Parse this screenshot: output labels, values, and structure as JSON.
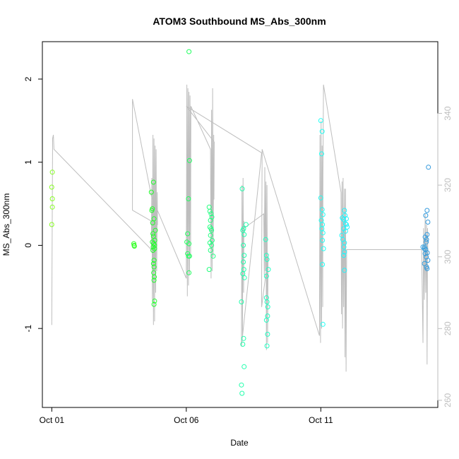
{
  "chart_data": {
    "type": "scatter",
    "title": "ATOM3 Southbound MS_Abs_300nm",
    "xlabel": "Date",
    "ylabel": "MS_Abs_300nm",
    "x_unit": "days since Oct 01",
    "xlim": [
      -0.35,
      14.35
    ],
    "ylim": [
      -1.95,
      2.45
    ],
    "x_ticks": [
      {
        "value": 0,
        "label": "Oct 01"
      },
      {
        "value": 5,
        "label": "Oct 06"
      },
      {
        "value": 10,
        "label": "Oct 11"
      }
    ],
    "y_ticks": [
      -1,
      0,
      1,
      2
    ],
    "y2_lim": [
      258,
      360
    ],
    "y2_ticks": [
      260,
      280,
      300,
      320,
      340
    ],
    "grid": false,
    "legend": "none",
    "series": [
      {
        "kind": "points",
        "color_ramp": [
          "#88ff22",
          "#22ff22",
          "#22ffaa",
          "#22ffff",
          "#3399dd"
        ],
        "points": [
          {
            "x": 0.02,
            "y": 0.88
          },
          {
            "x": 0.0,
            "y": 0.7
          },
          {
            "x": 0.02,
            "y": 0.56
          },
          {
            "x": 0.02,
            "y": 0.46
          },
          {
            "x": 0.0,
            "y": 0.25
          },
          {
            "x": 3.05,
            "y": 0.02
          },
          {
            "x": 3.06,
            "y": 0.0
          },
          {
            "x": 3.07,
            "y": -0.01
          },
          {
            "x": 3.7,
            "y": 0.64
          },
          {
            "x": 3.78,
            "y": 0.76
          },
          {
            "x": 3.74,
            "y": 0.44
          },
          {
            "x": 3.72,
            "y": 0.42
          },
          {
            "x": 3.8,
            "y": 0.32
          },
          {
            "x": 3.75,
            "y": 0.27
          },
          {
            "x": 3.85,
            "y": 0.18
          },
          {
            "x": 3.76,
            "y": 0.14
          },
          {
            "x": 3.78,
            "y": 0.11
          },
          {
            "x": 3.83,
            "y": 0.06
          },
          {
            "x": 3.74,
            "y": 0.04
          },
          {
            "x": 3.79,
            "y": 0.02
          },
          {
            "x": 3.77,
            "y": -0.02
          },
          {
            "x": 3.82,
            "y": -0.04
          },
          {
            "x": 3.76,
            "y": -0.06
          },
          {
            "x": 3.8,
            "y": -0.18
          },
          {
            "x": 3.78,
            "y": -0.22
          },
          {
            "x": 3.8,
            "y": -0.26
          },
          {
            "x": 3.79,
            "y": -0.33
          },
          {
            "x": 3.81,
            "y": -0.38
          },
          {
            "x": 3.8,
            "y": -0.42
          },
          {
            "x": 3.82,
            "y": -0.67
          },
          {
            "x": 3.8,
            "y": -0.71
          },
          {
            "x": 3.82,
            "y": 0.0
          },
          {
            "x": 5.1,
            "y": 2.33
          },
          {
            "x": 5.12,
            "y": 1.02
          },
          {
            "x": 5.08,
            "y": 0.56
          },
          {
            "x": 5.05,
            "y": 0.14
          },
          {
            "x": 5.02,
            "y": 0.04
          },
          {
            "x": 5.1,
            "y": 0.02
          },
          {
            "x": 5.05,
            "y": -0.1
          },
          {
            "x": 5.08,
            "y": -0.13
          },
          {
            "x": 5.12,
            "y": -0.13
          },
          {
            "x": 5.1,
            "y": -0.33
          },
          {
            "x": 5.85,
            "y": 0.46
          },
          {
            "x": 5.88,
            "y": 0.41
          },
          {
            "x": 5.92,
            "y": 0.38
          },
          {
            "x": 5.95,
            "y": 0.34
          },
          {
            "x": 5.9,
            "y": 0.3
          },
          {
            "x": 5.88,
            "y": 0.22
          },
          {
            "x": 5.92,
            "y": 0.2
          },
          {
            "x": 5.94,
            "y": 0.18
          },
          {
            "x": 5.9,
            "y": 0.12
          },
          {
            "x": 5.96,
            "y": 0.06
          },
          {
            "x": 5.88,
            "y": 0.03
          },
          {
            "x": 5.94,
            "y": 0.0
          },
          {
            "x": 5.9,
            "y": -0.06
          },
          {
            "x": 6.0,
            "y": -0.13
          },
          {
            "x": 5.85,
            "y": -0.29
          },
          {
            "x": 7.08,
            "y": 0.68
          },
          {
            "x": 7.22,
            "y": 0.25
          },
          {
            "x": 7.13,
            "y": 0.2
          },
          {
            "x": 7.1,
            "y": 0.18
          },
          {
            "x": 7.15,
            "y": 0.13
          },
          {
            "x": 7.12,
            "y": 0.0
          },
          {
            "x": 7.15,
            "y": -0.12
          },
          {
            "x": 7.12,
            "y": -0.2
          },
          {
            "x": 7.14,
            "y": -0.29
          },
          {
            "x": 7.1,
            "y": -0.34
          },
          {
            "x": 7.16,
            "y": -0.39
          },
          {
            "x": 7.05,
            "y": -0.68
          },
          {
            "x": 7.13,
            "y": -1.12
          },
          {
            "x": 7.1,
            "y": -1.19
          },
          {
            "x": 7.15,
            "y": -1.46
          },
          {
            "x": 7.05,
            "y": -1.68
          },
          {
            "x": 7.07,
            "y": -1.78
          },
          {
            "x": 7.95,
            "y": 0.07
          },
          {
            "x": 7.98,
            "y": -0.12
          },
          {
            "x": 8.0,
            "y": -0.17
          },
          {
            "x": 8.05,
            "y": -0.29
          },
          {
            "x": 7.98,
            "y": -0.37
          },
          {
            "x": 7.98,
            "y": -0.63
          },
          {
            "x": 8.0,
            "y": -0.68
          },
          {
            "x": 8.03,
            "y": -0.74
          },
          {
            "x": 8.02,
            "y": -0.85
          },
          {
            "x": 7.98,
            "y": -0.9
          },
          {
            "x": 8.02,
            "y": -1.07
          },
          {
            "x": 8.0,
            "y": -1.21
          },
          {
            "x": 10.0,
            "y": 1.5
          },
          {
            "x": 10.05,
            "y": 1.37
          },
          {
            "x": 10.03,
            "y": 1.1
          },
          {
            "x": 10.0,
            "y": 0.57
          },
          {
            "x": 10.05,
            "y": 0.43
          },
          {
            "x": 10.08,
            "y": 0.37
          },
          {
            "x": 10.02,
            "y": 0.3
          },
          {
            "x": 10.06,
            "y": 0.25
          },
          {
            "x": 10.04,
            "y": 0.2
          },
          {
            "x": 10.08,
            "y": 0.15
          },
          {
            "x": 10.06,
            "y": 0.06
          },
          {
            "x": 10.1,
            "y": -0.04
          },
          {
            "x": 10.06,
            "y": -0.23
          },
          {
            "x": 10.08,
            "y": -0.95
          },
          {
            "x": 10.8,
            "y": 0.33
          },
          {
            "x": 10.85,
            "y": 0.31
          },
          {
            "x": 10.9,
            "y": 0.36
          },
          {
            "x": 10.95,
            "y": 0.32
          },
          {
            "x": 10.88,
            "y": 0.42
          },
          {
            "x": 10.92,
            "y": 0.26
          },
          {
            "x": 10.98,
            "y": 0.22
          },
          {
            "x": 10.85,
            "y": 0.2
          },
          {
            "x": 10.92,
            "y": 0.17
          },
          {
            "x": 10.78,
            "y": 0.12
          },
          {
            "x": 10.82,
            "y": 0.07
          },
          {
            "x": 10.88,
            "y": 0.03
          },
          {
            "x": 10.86,
            "y": -0.02
          },
          {
            "x": 10.88,
            "y": -0.08
          },
          {
            "x": 10.85,
            "y": -0.12
          },
          {
            "x": 10.88,
            "y": -0.3
          },
          {
            "x": 10.95,
            "y": 0.25
          },
          {
            "x": 14.0,
            "y": 0.94
          },
          {
            "x": 13.95,
            "y": 0.42
          },
          {
            "x": 13.9,
            "y": 0.36
          },
          {
            "x": 13.98,
            "y": 0.28
          },
          {
            "x": 13.95,
            "y": 0.13
          },
          {
            "x": 13.88,
            "y": 0.1
          },
          {
            "x": 13.93,
            "y": 0.07
          },
          {
            "x": 13.92,
            "y": 0.04
          },
          {
            "x": 13.8,
            "y": -0.02
          },
          {
            "x": 13.85,
            "y": -0.04
          },
          {
            "x": 13.9,
            "y": -0.05
          },
          {
            "x": 13.86,
            "y": -0.02
          },
          {
            "x": 13.88,
            "y": -0.1
          },
          {
            "x": 13.96,
            "y": -0.09
          },
          {
            "x": 13.92,
            "y": -0.14
          },
          {
            "x": 13.98,
            "y": -0.18
          },
          {
            "x": 13.85,
            "y": -0.22
          },
          {
            "x": 13.93,
            "y": -0.26
          },
          {
            "x": 13.95,
            "y": -0.28
          }
        ]
      },
      {
        "kind": "line",
        "axis": "right",
        "color": "#bebebe",
        "points": [
          {
            "x": 0.0,
            "y": 281
          },
          {
            "x": 0.03,
            "y": 333
          },
          {
            "x": 0.06,
            "y": 334
          },
          {
            "x": 0.08,
            "y": 330
          },
          {
            "x": 3.7,
            "y": 302
          },
          {
            "x": 3.72,
            "y": 322
          },
          {
            "x": 3.74,
            "y": 288
          },
          {
            "x": 3.76,
            "y": 334
          },
          {
            "x": 3.78,
            "y": 281
          },
          {
            "x": 3.8,
            "y": 333
          },
          {
            "x": 3.82,
            "y": 282
          },
          {
            "x": 3.84,
            "y": 331
          },
          {
            "x": 3.86,
            "y": 290
          },
          {
            "x": 3.88,
            "y": 330
          },
          {
            "x": 3.9,
            "y": 296
          },
          {
            "x": 3.92,
            "y": 318
          },
          {
            "x": 3.93,
            "y": 309
          },
          {
            "x": 3.0,
            "y": 313
          },
          {
            "x": 3.0,
            "y": 344
          },
          {
            "x": 3.7,
            "y": 317
          },
          {
            "x": 5.0,
            "y": 294
          },
          {
            "x": 5.02,
            "y": 348
          },
          {
            "x": 5.04,
            "y": 289
          },
          {
            "x": 5.06,
            "y": 347
          },
          {
            "x": 5.08,
            "y": 292
          },
          {
            "x": 5.1,
            "y": 346
          },
          {
            "x": 5.12,
            "y": 295
          },
          {
            "x": 5.14,
            "y": 345
          },
          {
            "x": 5.16,
            "y": 300
          },
          {
            "x": 5.17,
            "y": 342
          },
          {
            "x": 5.9,
            "y": 330
          },
          {
            "x": 5.92,
            "y": 294
          },
          {
            "x": 5.94,
            "y": 341
          },
          {
            "x": 5.96,
            "y": 296
          },
          {
            "x": 5.98,
            "y": 347
          },
          {
            "x": 6.0,
            "y": 300
          },
          {
            "x": 6.02,
            "y": 334
          },
          {
            "x": 6.03,
            "y": 316
          },
          {
            "x": 6.04,
            "y": 332
          },
          {
            "x": 5.0,
            "y": 342
          },
          {
            "x": 7.8,
            "y": 329
          },
          {
            "x": 7.05,
            "y": 275
          },
          {
            "x": 7.07,
            "y": 320
          },
          {
            "x": 7.09,
            "y": 278
          },
          {
            "x": 7.11,
            "y": 322
          },
          {
            "x": 7.13,
            "y": 290
          },
          {
            "x": 7.14,
            "y": 310
          },
          {
            "x": 7.15,
            "y": 308
          },
          {
            "x": 7.88,
            "y": 312
          },
          {
            "x": 7.9,
            "y": 295
          },
          {
            "x": 7.92,
            "y": 325
          },
          {
            "x": 7.94,
            "y": 296
          },
          {
            "x": 7.96,
            "y": 321
          },
          {
            "x": 7.98,
            "y": 274
          },
          {
            "x": 8.0,
            "y": 320
          },
          {
            "x": 8.02,
            "y": 276
          },
          {
            "x": 8.04,
            "y": 300
          },
          {
            "x": 7.8,
            "y": 286
          },
          {
            "x": 7.8,
            "y": 292
          },
          {
            "x": 7.82,
            "y": 330
          },
          {
            "x": 9.95,
            "y": 278
          },
          {
            "x": 9.97,
            "y": 334
          },
          {
            "x": 9.99,
            "y": 276
          },
          {
            "x": 10.01,
            "y": 338
          },
          {
            "x": 10.03,
            "y": 280
          },
          {
            "x": 10.05,
            "y": 331
          },
          {
            "x": 10.07,
            "y": 286
          },
          {
            "x": 10.08,
            "y": 323
          },
          {
            "x": 10.1,
            "y": 348
          },
          {
            "x": 10.75,
            "y": 318
          },
          {
            "x": 10.77,
            "y": 284
          },
          {
            "x": 10.79,
            "y": 321
          },
          {
            "x": 10.81,
            "y": 280
          },
          {
            "x": 10.83,
            "y": 322
          },
          {
            "x": 10.85,
            "y": 286
          },
          {
            "x": 10.88,
            "y": 319
          },
          {
            "x": 10.9,
            "y": 272
          },
          {
            "x": 10.92,
            "y": 319
          },
          {
            "x": 10.94,
            "y": 268
          },
          {
            "x": 10.96,
            "y": 302
          },
          {
            "x": 13.75,
            "y": 302
          },
          {
            "x": 13.8,
            "y": 276
          },
          {
            "x": 13.82,
            "y": 308
          },
          {
            "x": 13.85,
            "y": 288
          },
          {
            "x": 13.88,
            "y": 312
          },
          {
            "x": 13.9,
            "y": 290
          },
          {
            "x": 13.93,
            "y": 309
          },
          {
            "x": 13.95,
            "y": 270
          },
          {
            "x": 13.97,
            "y": 308
          },
          {
            "x": 13.98,
            "y": 300
          }
        ]
      }
    ]
  }
}
